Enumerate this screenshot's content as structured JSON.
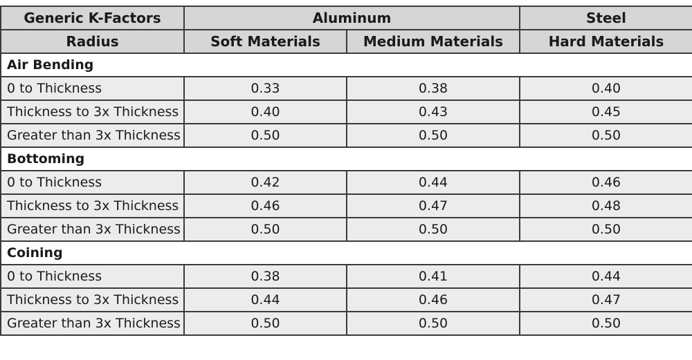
{
  "header": {
    "row1": [
      "Generic K-Factors",
      "Aluminum",
      "Steel"
    ],
    "row2": [
      "Radius",
      "Soft Materials",
      "Medium Materials",
      "Hard Materials"
    ]
  },
  "sections": [
    {
      "title": "Air Bending",
      "rows": [
        [
          "0 to Thickness",
          "0.33",
          "0.38",
          "0.40"
        ],
        [
          "Thickness to 3x Thickness",
          "0.40",
          "0.43",
          "0.45"
        ],
        [
          "Greater than 3x Thickness",
          "0.50",
          "0.50",
          "0.50"
        ]
      ]
    },
    {
      "title": "Bottoming",
      "rows": [
        [
          "0 to Thickness",
          "0.42",
          "0.44",
          "0.46"
        ],
        [
          "Thickness to 3x Thickness",
          "0.46",
          "0.47",
          "0.48"
        ],
        [
          "Greater than 3x Thickness",
          "0.50",
          "0.50",
          "0.50"
        ]
      ]
    },
    {
      "title": "Coining",
      "rows": [
        [
          "0 to Thickness",
          "0.38",
          "0.41",
          "0.44"
        ],
        [
          "Thickness to 3x Thickness",
          "0.44",
          "0.46",
          "0.47"
        ],
        [
          "Greater than 3x Thickness",
          "0.50",
          "0.50",
          "0.50"
        ]
      ]
    }
  ]
}
